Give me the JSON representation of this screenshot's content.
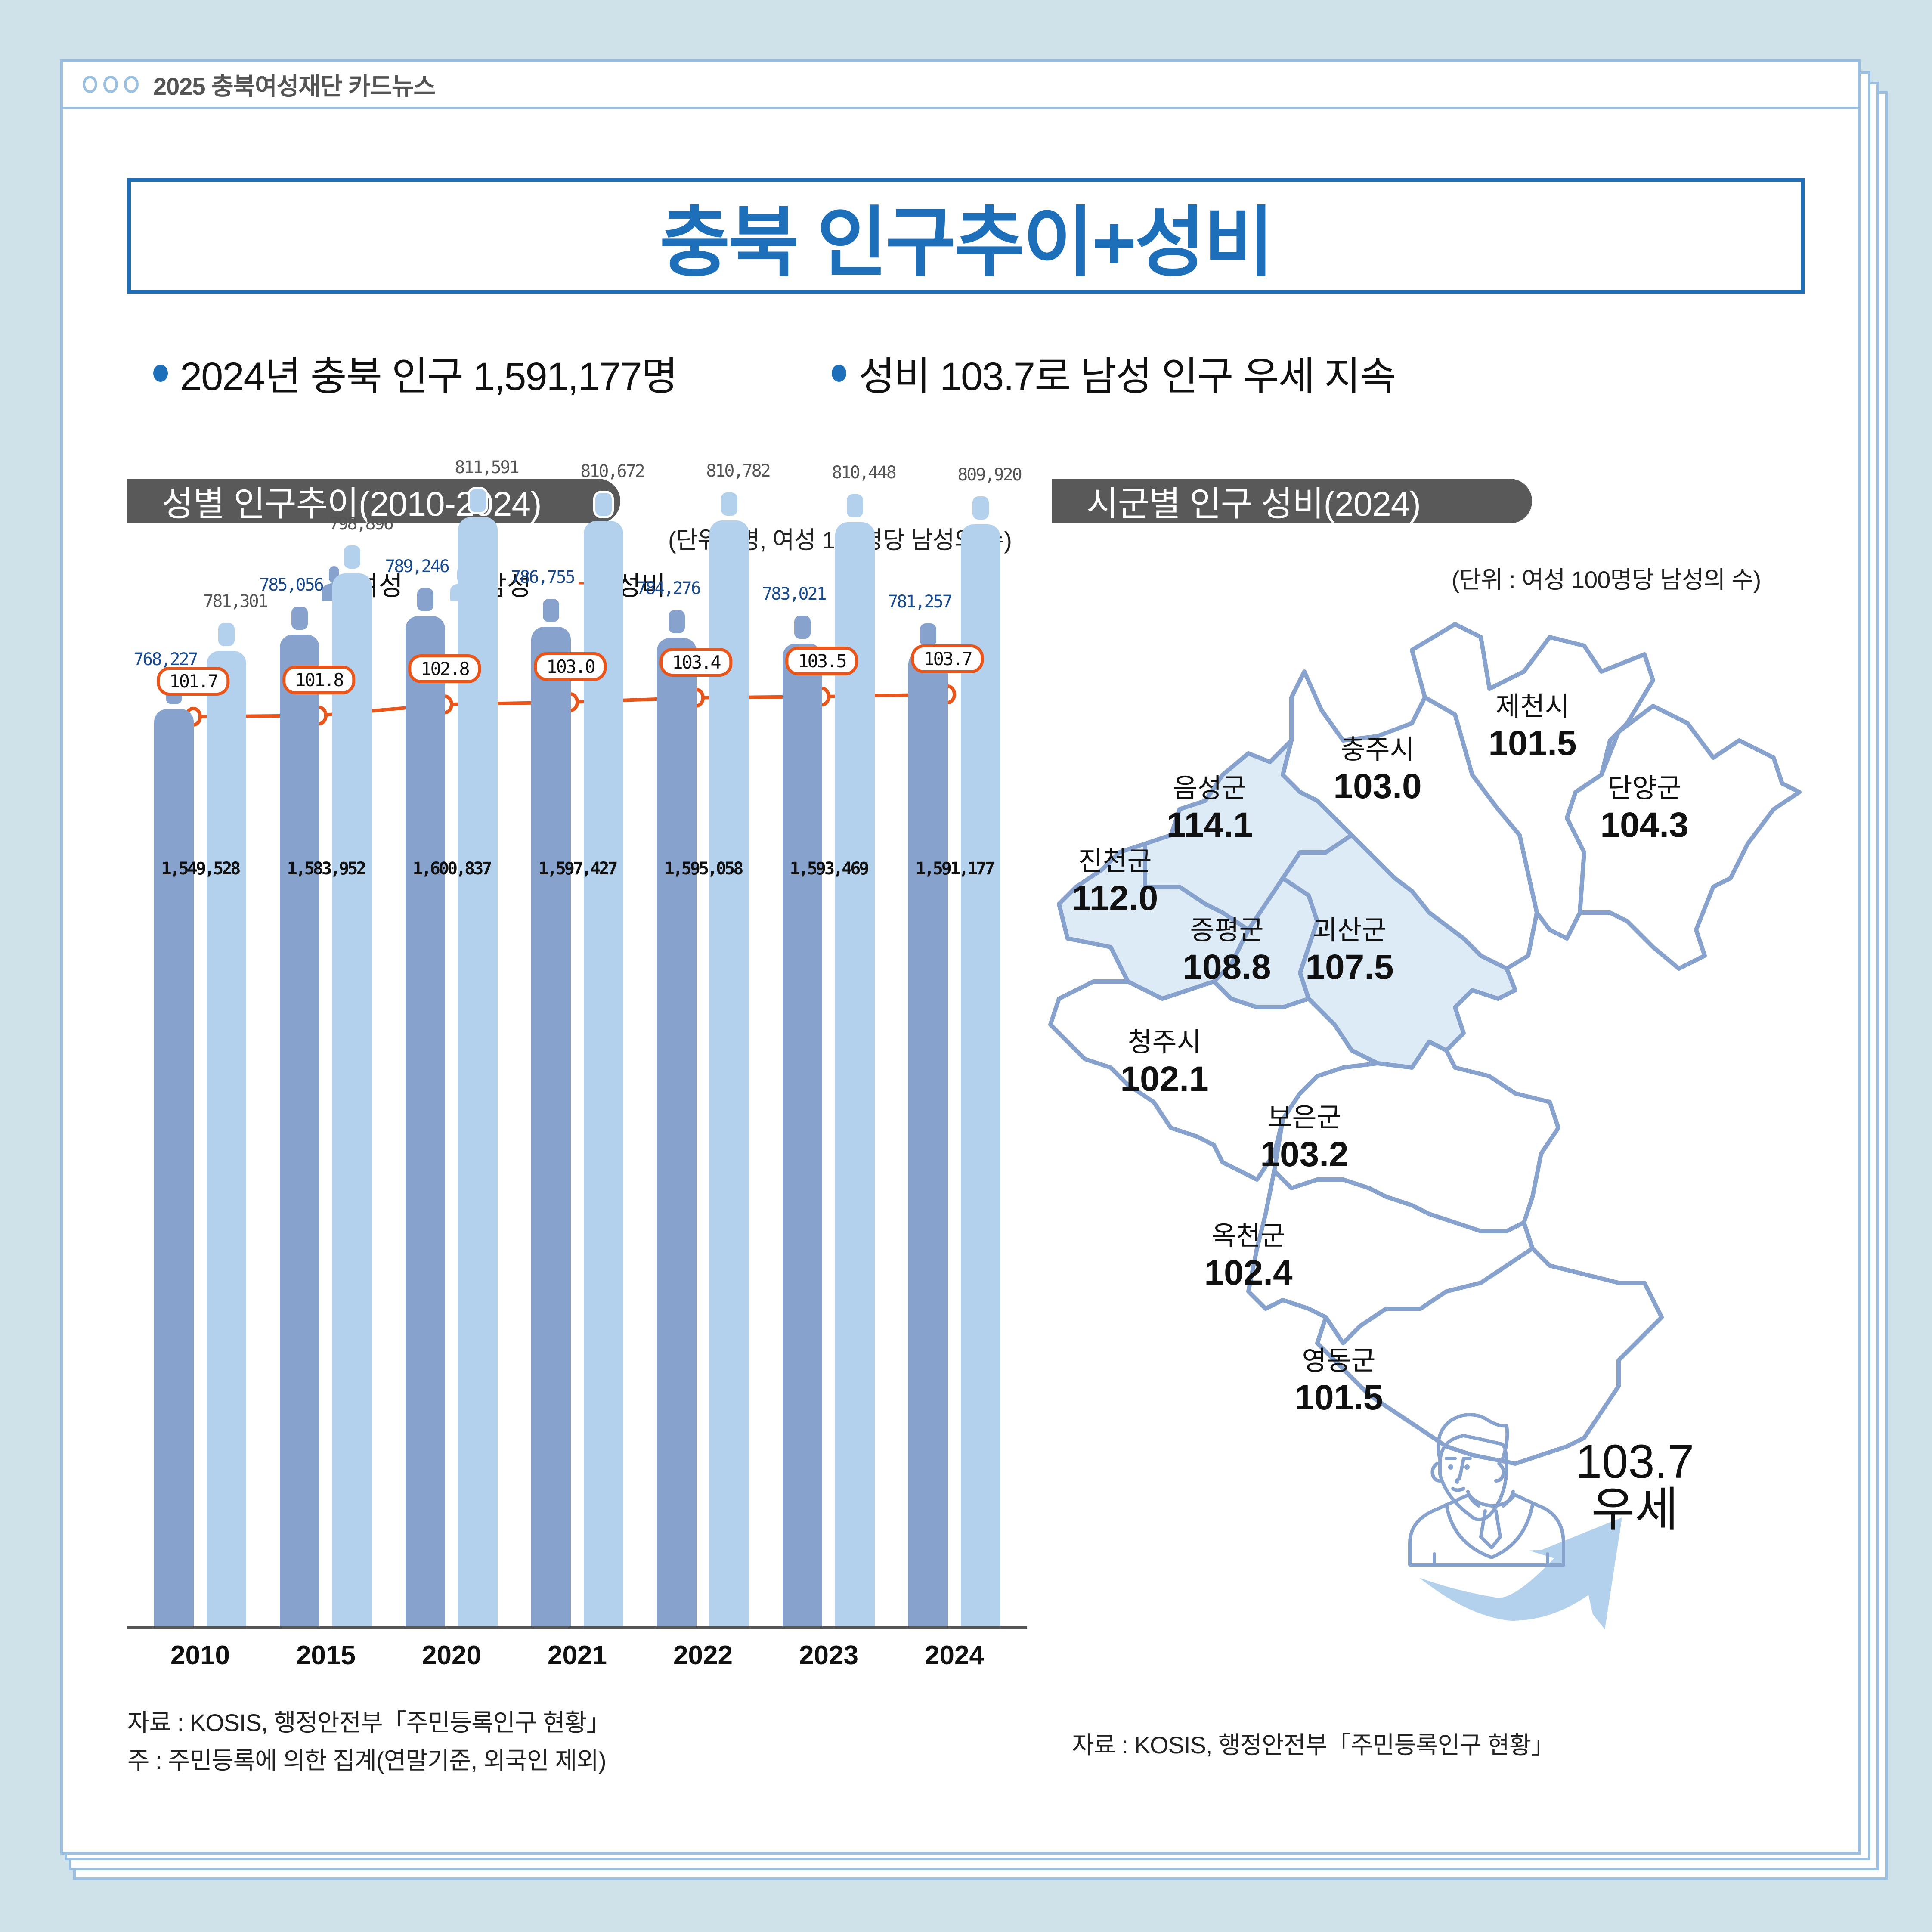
{
  "window": {
    "title": "2025 충북여성재단 카드뉴스",
    "dots": 3
  },
  "headline": "충북 인구추이+성비",
  "bullets": [
    "2024년 충북 인구 1,591,177명",
    "성비 103.7로 남성 인구 우세 지속"
  ],
  "left_section": {
    "tag": "성별 인구추이(2010-2024)",
    "unit": "(단위 : 명, 여성 100명당 남성의 수)",
    "legend": [
      {
        "label": "여성",
        "icon": "female-person-icon",
        "color": "#87a2cd"
      },
      {
        "label": "남성",
        "icon": "male-person-icon",
        "color": "#b3d1ec"
      },
      {
        "label": "성비",
        "icon": "line-marker-icon",
        "color": "#e8561b"
      }
    ],
    "notes": [
      "자료 : KOSIS, 행정안전부「주민등록인구 현황」",
      "주 : 주민등록에 의한 집계(연말기준, 외국인 제외)"
    ]
  },
  "right_section": {
    "tag": "시군별 인구 성비(2024)",
    "unit": "(단위 : 여성 100명당 남성의 수)",
    "regions": [
      {
        "name": "제천시",
        "value": "101.5",
        "highlight": false
      },
      {
        "name": "충주시",
        "value": "103.0",
        "highlight": false
      },
      {
        "name": "단양군",
        "value": "104.3",
        "highlight": false
      },
      {
        "name": "음성군",
        "value": "114.1",
        "highlight": true
      },
      {
        "name": "진천군",
        "value": "112.0",
        "highlight": true
      },
      {
        "name": "증평군",
        "value": "108.8",
        "highlight": true
      },
      {
        "name": "괴산군",
        "value": "107.5",
        "highlight": true
      },
      {
        "name": "청주시",
        "value": "102.1",
        "highlight": false
      },
      {
        "name": "보은군",
        "value": "103.2",
        "highlight": false
      },
      {
        "name": "옥천군",
        "value": "102.4",
        "highlight": false
      },
      {
        "name": "영동군",
        "value": "101.5",
        "highlight": false
      }
    ],
    "summary": {
      "value": "103.7",
      "label": "우세",
      "icon": "man-icon"
    },
    "note": "자료 : KOSIS, 행정안전부「주민등록인구 현황」"
  },
  "colors": {
    "accent": "#1e6fba",
    "female": "#87a2cd",
    "male": "#b3d1ec",
    "ratio": "#e8561b",
    "tag_bg": "#595959",
    "background": "#cfe2ea",
    "frame": "#9bbfe0",
    "highlight_region": "#ddebf7"
  },
  "chart_data": {
    "type": "bar",
    "title": "성별 인구추이(2010-2024)",
    "subtitle": "(단위 : 명, 여성 100명당 남성의 수)",
    "xlabel": "",
    "ylabel": "",
    "categories": [
      "2010",
      "2015",
      "2020",
      "2021",
      "2022",
      "2023",
      "2024"
    ],
    "series": [
      {
        "name": "여성",
        "type": "bar",
        "values": [
          768227,
          785056,
          789246,
          786755,
          784276,
          783021,
          781257
        ]
      },
      {
        "name": "남성",
        "type": "bar",
        "values": [
          781301,
          798896,
          811591,
          810672,
          810782,
          810448,
          809920
        ]
      },
      {
        "name": "성비",
        "type": "line",
        "values": [
          101.7,
          101.8,
          102.8,
          103.0,
          103.4,
          103.5,
          103.7
        ]
      }
    ],
    "totals": [
      1549528,
      1583952,
      1600837,
      1597427,
      1595058,
      1593469,
      1591177
    ],
    "labels": {
      "female": [
        "768,227",
        "785,056",
        "789,246",
        "786,755",
        "784,276",
        "783,021",
        "781,257"
      ],
      "male": [
        "781,301",
        "798,896",
        "811,591",
        "810,672",
        "810,782",
        "810,448",
        "809,920"
      ],
      "total": [
        "1,549,528",
        "1,583,952",
        "1,600,837",
        "1,597,427",
        "1,595,058",
        "1,593,469",
        "1,591,177"
      ],
      "ratio": [
        "101.7",
        "101.8",
        "102.8",
        "103.0",
        "103.4",
        "103.5",
        "103.7"
      ]
    },
    "legend": [
      "여성",
      "남성",
      "성비"
    ],
    "legend_position": "top",
    "grid": false
  }
}
